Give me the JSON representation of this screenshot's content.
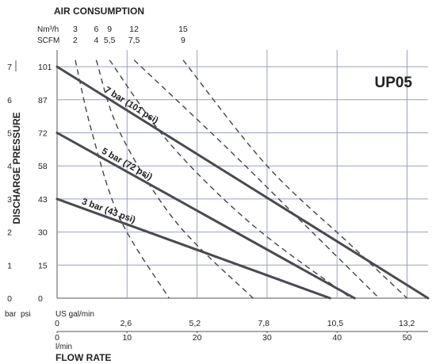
{
  "chart_data": {
    "type": "line",
    "model_label": "UP05",
    "air_title": "AIR CONSUMPTION",
    "ylabel": "DISCHARGE PRESSURE",
    "xlabel": "FLOW RATE",
    "air_units": {
      "nm3h": "Nm³/h",
      "scfm": "SCFM"
    },
    "air_ticks": [
      {
        "nm3h": "3",
        "scfm": "2"
      },
      {
        "nm3h": "6",
        "scfm": "4"
      },
      {
        "nm3h": "9",
        "scfm": "5,5"
      },
      {
        "nm3h": "12",
        "scfm": "7,5"
      },
      {
        "nm3h": "15",
        "scfm": "9"
      }
    ],
    "y_unit_bar": "bar",
    "y_unit_psi": "psi",
    "y_ticks_bar": [
      "0",
      "1",
      "2",
      "3",
      "4",
      "5",
      "6",
      "7"
    ],
    "y_ticks_psi": [
      "0",
      "15",
      "30",
      "43",
      "58",
      "72",
      "87",
      "101"
    ],
    "x_unit_gal": "US gal/min",
    "x_unit_lmin": "l/min",
    "x_ticks_gal": [
      "0",
      "2,6",
      "5,2",
      "7,8",
      "10,5",
      "13,2"
    ],
    "x_ticks_lmin": [
      "0",
      "10",
      "20",
      "30",
      "40",
      "50"
    ],
    "xlim": [
      0,
      53
    ],
    "ylim": [
      0,
      7.2
    ],
    "grid": true,
    "series": [
      {
        "name": "7 bar (101 psi)",
        "x": [
          0,
          53
        ],
        "y": [
          7,
          0
        ]
      },
      {
        "name": "5 bar (72 psi)",
        "x": [
          0,
          42.5
        ],
        "y": [
          5,
          0
        ]
      },
      {
        "name": "3 bar (43 psi)",
        "x": [
          0,
          39
        ],
        "y": [
          3,
          0
        ]
      }
    ],
    "air_curves": [
      {
        "nm3h": "3",
        "x": [
          2.6,
          5,
          9,
          16
        ],
        "y": [
          7.2,
          5.0,
          2.4,
          0
        ]
      },
      {
        "nm3h": "6",
        "x": [
          5.6,
          9,
          17,
          28
        ],
        "y": [
          7.2,
          5.0,
          2.3,
          0
        ]
      },
      {
        "nm3h": "9",
        "x": [
          7.5,
          16,
          28,
          42
        ],
        "y": [
          7.2,
          4.7,
          2.2,
          0
        ]
      },
      {
        "nm3h": "12",
        "x": [
          11,
          24,
          35,
          46
        ],
        "y": [
          7.2,
          4.6,
          2.3,
          0
        ]
      },
      {
        "nm3h": "15",
        "x": [
          18,
          30,
          42,
          50
        ],
        "y": [
          7.2,
          4.0,
          1.6,
          0
        ]
      }
    ]
  }
}
